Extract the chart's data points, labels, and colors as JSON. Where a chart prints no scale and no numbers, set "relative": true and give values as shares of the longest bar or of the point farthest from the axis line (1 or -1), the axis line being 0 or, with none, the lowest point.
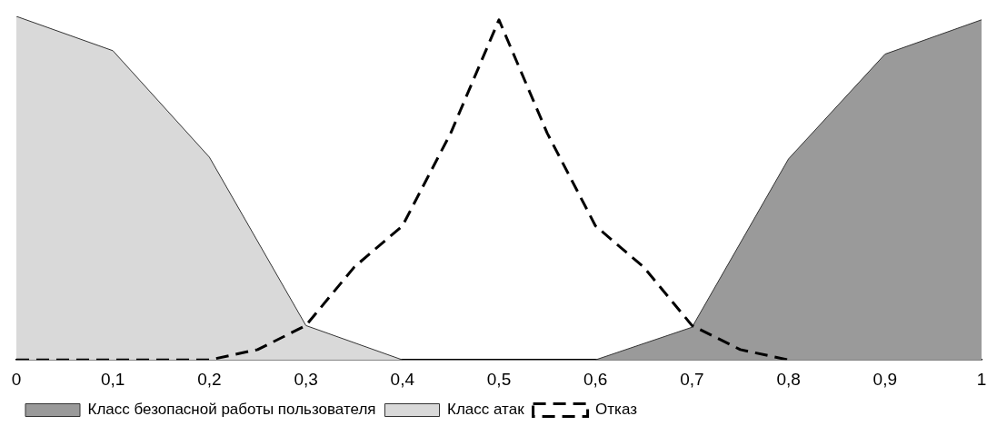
{
  "chart_data": {
    "type": "area",
    "relative": true,
    "xlim": [
      0,
      1
    ],
    "xticks": [
      0,
      {
        "value": 0.1,
        "label": "0,1"
      },
      {
        "value": 0.2,
        "label": "0,2"
      },
      {
        "value": 0.3,
        "label": "0,3"
      },
      {
        "value": 0.4,
        "label": "0,4"
      },
      {
        "value": 0.5,
        "label": "0,5"
      },
      {
        "value": 0.6,
        "label": "0,6"
      },
      {
        "value": 0.7,
        "label": "0,7"
      },
      {
        "value": 0.8,
        "label": "0,8"
      },
      {
        "value": 0.9,
        "label": "0,9"
      },
      1
    ],
    "grid": false,
    "legend": "bottom",
    "marker": "none",
    "series": [
      {
        "name": "Класс безопасной работы пользователя",
        "color": "#9a9a9a",
        "x": [
          0.6,
          0.7,
          0.8,
          0.9,
          1
        ],
        "values": [
          0,
          0.095,
          0.585,
          0.89,
          0.99
        ]
      },
      {
        "name": "Класс атак",
        "color": "#d9d9d9",
        "x": [
          0,
          0.1,
          0.2,
          0.3,
          0.4
        ],
        "values": [
          1,
          0.9,
          0.59,
          0.1,
          0
        ]
      },
      {
        "name": "Отказ",
        "type": "line",
        "line_style": "dashed",
        "color": "#000000",
        "x": [
          0,
          0.2,
          0.25,
          0.3,
          0.35,
          0.4,
          0.45,
          0.5,
          0.55,
          0.6,
          0.65,
          0.7,
          0.75,
          0.8
        ],
        "values": [
          0,
          0,
          0.03,
          0.1,
          0.27,
          0.39,
          0.66,
          0.99,
          0.66,
          0.39,
          0.27,
          0.1,
          0.03,
          0
        ]
      }
    ]
  }
}
